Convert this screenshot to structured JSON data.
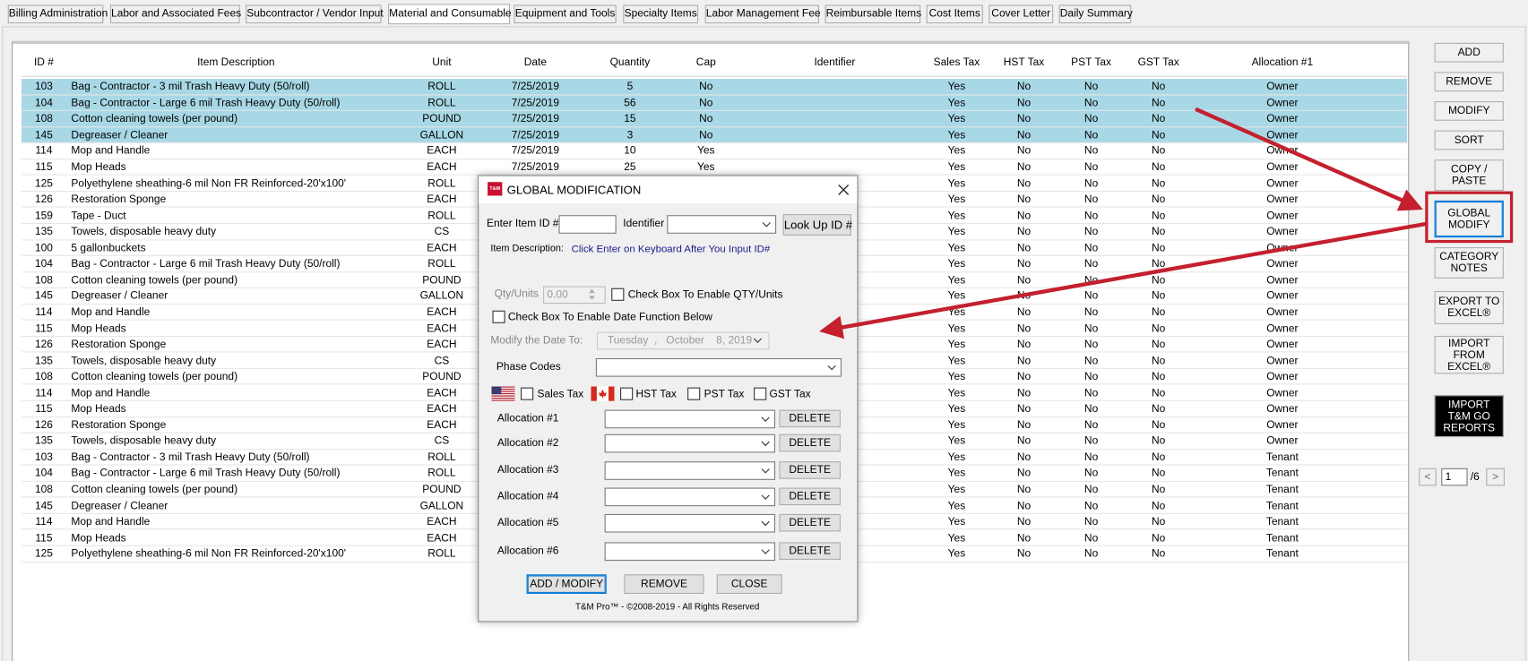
{
  "tabs": [
    "Billing Administration",
    "Labor and Associated Fees",
    "Subcontractor / Vendor Input",
    "Material and Consumable",
    "Equipment and Tools",
    "Specialty Items",
    "Labor Management Fee",
    "Reimbursable Items",
    "Cost Items",
    "Cover Letter",
    "Daily Summary"
  ],
  "selected_tab": 3,
  "table": {
    "columns": [
      "ID #",
      "Item Description",
      "Unit",
      "Date",
      "Quantity",
      "Cap",
      "Identifier",
      "Sales Tax",
      "HST Tax",
      "PST Tax",
      "GST Tax",
      "Allocation #1"
    ],
    "selected_rows": [
      0,
      1,
      2,
      3
    ],
    "rows": [
      [
        103,
        "Bag - Contractor - 3 mil Trash Heavy Duty (50/roll)",
        "ROLL",
        "7/25/2019",
        5,
        "No",
        null,
        "Yes",
        "No",
        "No",
        "No",
        "Owner"
      ],
      [
        104,
        "Bag - Contractor - Large 6 mil Trash Heavy Duty (50/roll)",
        "ROLL",
        "7/25/2019",
        56,
        "No",
        null,
        "Yes",
        "No",
        "No",
        "No",
        "Owner"
      ],
      [
        108,
        "Cotton cleaning towels (per pound)",
        "POUND",
        "7/25/2019",
        15,
        "No",
        null,
        "Yes",
        "No",
        "No",
        "No",
        "Owner"
      ],
      [
        145,
        "Degreaser / Cleaner",
        "GALLON",
        "7/25/2019",
        3,
        "No",
        null,
        "Yes",
        "No",
        "No",
        "No",
        "Owner"
      ],
      [
        114,
        "Mop and Handle",
        "EACH",
        "7/25/2019",
        10,
        "Yes",
        null,
        "Yes",
        "No",
        "No",
        "No",
        "Owner"
      ],
      [
        115,
        "Mop Heads",
        "EACH",
        "7/25/2019",
        25,
        "Yes",
        null,
        "Yes",
        "No",
        "No",
        "No",
        "Owner"
      ],
      [
        125,
        "Polyethylene sheathing-6 mil Non FR Reinforced-20'x100'",
        "ROLL",
        null,
        null,
        null,
        null,
        "Yes",
        "No",
        "No",
        "No",
        "Owner"
      ],
      [
        126,
        "Restoration Sponge",
        "EACH",
        null,
        null,
        null,
        null,
        "Yes",
        "No",
        "No",
        "No",
        "Owner"
      ],
      [
        159,
        "Tape - Duct",
        "ROLL",
        null,
        null,
        null,
        null,
        "Yes",
        "No",
        "No",
        "No",
        "Owner"
      ],
      [
        135,
        "Towels, disposable heavy duty",
        "CS",
        null,
        null,
        null,
        null,
        "Yes",
        "No",
        "No",
        "No",
        "Owner"
      ],
      [
        100,
        "5 gallonbuckets",
        "EACH",
        null,
        null,
        null,
        null,
        "Yes",
        "No",
        "No",
        "No",
        "Owner"
      ],
      [
        104,
        "Bag - Contractor - Large 6 mil Trash Heavy Duty (50/roll)",
        "ROLL",
        null,
        null,
        null,
        null,
        "Yes",
        "No",
        "No",
        "No",
        "Owner"
      ],
      [
        108,
        "Cotton cleaning towels (per pound)",
        "POUND",
        null,
        null,
        null,
        null,
        "Yes",
        "No",
        "No",
        "No",
        "Owner"
      ],
      [
        145,
        "Degreaser / Cleaner",
        "GALLON",
        null,
        null,
        null,
        null,
        "Yes",
        "No",
        "No",
        "No",
        "Owner"
      ],
      [
        114,
        "Mop and Handle",
        "EACH",
        null,
        null,
        null,
        null,
        "Yes",
        "No",
        "No",
        "No",
        "Owner"
      ],
      [
        115,
        "Mop Heads",
        "EACH",
        null,
        null,
        null,
        null,
        "Yes",
        "No",
        "No",
        "No",
        "Owner"
      ],
      [
        126,
        "Restoration Sponge",
        "EACH",
        null,
        null,
        null,
        null,
        "Yes",
        "No",
        "No",
        "No",
        "Owner"
      ],
      [
        135,
        "Towels, disposable heavy duty",
        "CS",
        null,
        null,
        null,
        null,
        "Yes",
        "No",
        "No",
        "No",
        "Owner"
      ],
      [
        108,
        "Cotton cleaning towels (per pound)",
        "POUND",
        null,
        null,
        null,
        null,
        "Yes",
        "No",
        "No",
        "No",
        "Owner"
      ],
      [
        114,
        "Mop and Handle",
        "EACH",
        null,
        null,
        null,
        null,
        "Yes",
        "No",
        "No",
        "No",
        "Owner"
      ],
      [
        115,
        "Mop Heads",
        "EACH",
        null,
        null,
        null,
        null,
        "Yes",
        "No",
        "No",
        "No",
        "Owner"
      ],
      [
        126,
        "Restoration Sponge",
        "EACH",
        null,
        null,
        null,
        null,
        "Yes",
        "No",
        "No",
        "No",
        "Owner"
      ],
      [
        135,
        "Towels, disposable heavy duty",
        "CS",
        null,
        null,
        null,
        null,
        "Yes",
        "No",
        "No",
        "No",
        "Owner"
      ],
      [
        103,
        "Bag - Contractor - 3 mil Trash Heavy Duty (50/roll)",
        "ROLL",
        null,
        null,
        null,
        null,
        "Yes",
        "No",
        "No",
        "No",
        "Tenant"
      ],
      [
        104,
        "Bag - Contractor - Large 6 mil Trash Heavy Duty (50/roll)",
        "ROLL",
        null,
        null,
        null,
        null,
        "Yes",
        "No",
        "No",
        "No",
        "Tenant"
      ],
      [
        108,
        "Cotton cleaning towels (per pound)",
        "POUND",
        null,
        null,
        null,
        null,
        "Yes",
        "No",
        "No",
        "No",
        "Tenant"
      ],
      [
        145,
        "Degreaser / Cleaner",
        "GALLON",
        null,
        null,
        null,
        null,
        "Yes",
        "No",
        "No",
        "No",
        "Tenant"
      ],
      [
        114,
        "Mop and Handle",
        "EACH",
        null,
        null,
        null,
        null,
        "Yes",
        "No",
        "No",
        "No",
        "Tenant"
      ],
      [
        115,
        "Mop Heads",
        "EACH",
        null,
        null,
        null,
        null,
        "Yes",
        "No",
        "No",
        "No",
        "Tenant"
      ],
      [
        125,
        "Polyethylene sheathing-6 mil Non FR Reinforced-20'x100'",
        "ROLL",
        null,
        null,
        null,
        null,
        "Yes",
        "No",
        "No",
        "No",
        "Tenant"
      ]
    ]
  },
  "side_buttons": [
    "ADD",
    "REMOVE",
    "MODIFY",
    "SORT",
    "COPY /\nPASTE",
    "GLOBAL\nMODIFY",
    "CATEGORY\nNOTES",
    "EXPORT TO\nEXCEL®",
    "IMPORT\nFROM\nEXCEL®",
    "IMPORT\nT&M GO\nREPORTS"
  ],
  "pager": {
    "prev": "<",
    "page": "1",
    "total": "/6",
    "next": ">"
  },
  "dialog": {
    "logo": "T&M",
    "title": "GLOBAL MODIFICATION",
    "item_id_label": "Enter Item ID #",
    "identifier_label": "Identifier",
    "lookup_button": "Look Up ID #",
    "item_description_label": "Item Description:",
    "item_description_hint": "Click Enter on Keyboard After You Input ID#",
    "qty_label": "Qty/Units",
    "qty_value": "0.00",
    "qty_checkbox": "Check Box To Enable QTY/Units",
    "date_checkbox": "Check Box To Enable Date Function Below",
    "date_label": "Modify the Date To:",
    "date_value": "Tuesday  ,   October    8, 2019",
    "phase_label": "Phase Codes",
    "taxes": [
      "Sales Tax",
      "HST Tax",
      "PST Tax",
      "GST Tax"
    ],
    "allocations": [
      "Allocation #1",
      "Allocation #2",
      "Allocation #3",
      "Allocation #4",
      "Allocation #5",
      "Allocation #6"
    ],
    "delete_button": "DELETE",
    "buttons": [
      "ADD / MODIFY",
      "REMOVE",
      "CLOSE"
    ],
    "footer": "T&M Pro™ - ©2008-2019 - All Rights Reserved"
  }
}
